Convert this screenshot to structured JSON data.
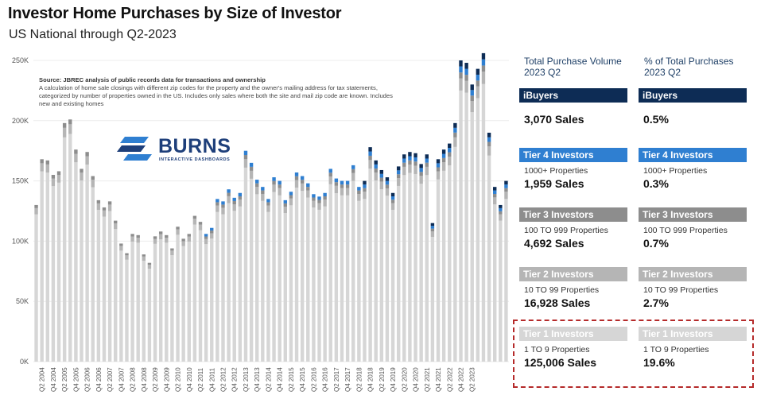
{
  "title": "Investor Home Purchases by Size of Investor",
  "subtitle": "US National through Q2-2023",
  "source": {
    "label": "Source: JBREC analysis of public records data for transactions and ownership",
    "text": "A calculation of home sale closings with different zip codes for the property and the owner's mailing address for tax statements, categorized by number of properties owned in the US. Includes only sales where both the site and mail zip code are known. Includes new and existing homes"
  },
  "logo": {
    "name": "BURNS",
    "tagline": "INTERACTIVE DASHBOARDS"
  },
  "colors": {
    "ibuyers": "#0d2c55",
    "tier4": "#2f7fd1",
    "tier3": "#8d8d8d",
    "tier2": "#b5b5b5",
    "tier1": "#d6d6d6",
    "highlight": "#b52a2a"
  },
  "panel": {
    "col_volume_title": "Total Purchase Volume\n2023 Q2",
    "col_pct_title": "% of Total Purchases\n2023 Q2",
    "rows": [
      {
        "label": "iBuyers",
        "detail": "",
        "sales": "3,070 Sales",
        "pct": "0.5%"
      },
      {
        "label": "Tier 4 Investors",
        "detail": "1000+ Properties",
        "sales": "1,959 Sales",
        "pct": "0.3%"
      },
      {
        "label": "Tier 3 Investors",
        "detail": "100 TO 999 Properties",
        "sales": "4,692 Sales",
        "pct": "0.7%"
      },
      {
        "label": "Tier 2 Investors",
        "detail": "10 TO 99 Properties",
        "sales": "16,928 Sales",
        "pct": "2.7%"
      },
      {
        "label": "Tier 1 Investors",
        "detail": "1 TO 9 Properties",
        "sales": "125,006 Sales",
        "pct": "19.6%"
      }
    ]
  },
  "chart_data": {
    "type": "bar",
    "stacked": true,
    "ylim": [
      0,
      250000
    ],
    "yticks": [
      0,
      50000,
      100000,
      150000,
      200000,
      250000
    ],
    "ytick_labels": [
      "0K",
      "50K",
      "100K",
      "150K",
      "200K",
      "250K"
    ],
    "series_order": [
      "Tier 1 Investors",
      "Tier 2 Investors",
      "Tier 3 Investors",
      "Tier 4 Investors",
      "iBuyers"
    ],
    "x_labels": [
      "Q2 2004",
      "Q4 2004",
      "Q2 2005",
      "Q4 2005",
      "Q2 2006",
      "Q4 2006",
      "Q2 2007",
      "Q4 2007",
      "Q2 2008",
      "Q4 2008",
      "Q2 2009",
      "Q4 2009",
      "Q2 2010",
      "Q4 2010",
      "Q2 2011",
      "Q4 2011",
      "Q2 2012",
      "Q4 2012",
      "Q2 2013",
      "Q4 2013",
      "Q2 2014",
      "Q4 2014",
      "Q2 2015",
      "Q4 2015",
      "Q2 2016",
      "Q4 2016",
      "Q2 2017",
      "Q4 2017",
      "Q2 2018",
      "Q4 2018",
      "Q2 2019",
      "Q4 2019",
      "Q2 2020",
      "Q4 2020",
      "Q2 2021",
      "Q4 2021",
      "Q2 2022",
      "Q4 2022",
      "Q2 2023"
    ],
    "totals": [
      130000,
      168000,
      167000,
      155000,
      158000,
      198000,
      201000,
      176000,
      160000,
      174000,
      154000,
      134000,
      128000,
      133000,
      117000,
      98000,
      90000,
      106000,
      105000,
      89000,
      82000,
      104000,
      108000,
      105000,
      94000,
      112000,
      102000,
      106000,
      121000,
      116000,
      106000,
      111000,
      135000,
      133000,
      143000,
      136000,
      140000,
      175000,
      165000,
      151000,
      145000,
      135000,
      153000,
      150000,
      134000,
      141000,
      157000,
      154000,
      148000,
      139000,
      137000,
      140000,
      160000,
      152000,
      150000,
      150000,
      163000,
      145000,
      150000,
      178000,
      167000,
      159000,
      153000,
      140000,
      162000,
      172000,
      174000,
      173000,
      164000,
      172000,
      115000,
      168000,
      176000,
      181000,
      198000,
      250000,
      248000,
      230000,
      243000,
      256000,
      190000,
      145000,
      130000,
      150000
    ],
    "top_shares": {
      "tier2": 0.04,
      "tier3": 0.02,
      "tier4_from_index": 30,
      "tier4": 0.02,
      "ibuyers_from_index": 58,
      "ibuyers": 0.02
    }
  }
}
